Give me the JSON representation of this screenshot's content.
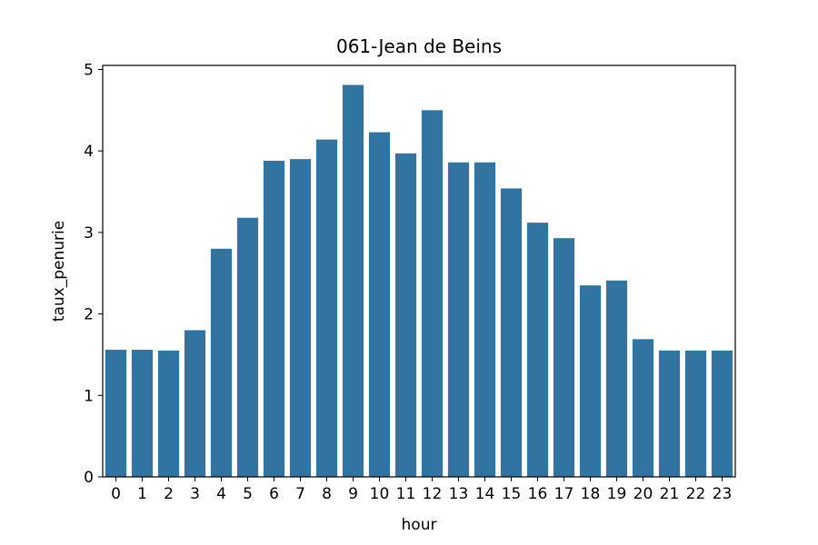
{
  "chart_data": {
    "type": "bar",
    "title": "061-Jean de Beins",
    "xlabel": "hour",
    "ylabel": "taux_penurie",
    "categories": [
      "0",
      "1",
      "2",
      "3",
      "4",
      "5",
      "6",
      "7",
      "8",
      "9",
      "10",
      "11",
      "12",
      "13",
      "14",
      "15",
      "16",
      "17",
      "18",
      "19",
      "20",
      "21",
      "22",
      "23"
    ],
    "values": [
      1.56,
      1.56,
      1.55,
      1.8,
      2.8,
      3.18,
      3.88,
      3.9,
      4.14,
      4.81,
      4.23,
      3.97,
      4.5,
      3.86,
      3.86,
      3.54,
      3.12,
      2.93,
      2.35,
      2.41,
      1.69,
      1.55,
      1.55,
      1.55
    ],
    "ylim": [
      0,
      5.05
    ],
    "yticks": [
      "0",
      "1",
      "2",
      "3",
      "4",
      "5"
    ],
    "bar_color": "#3274a1",
    "grid": false,
    "legend": "none"
  }
}
